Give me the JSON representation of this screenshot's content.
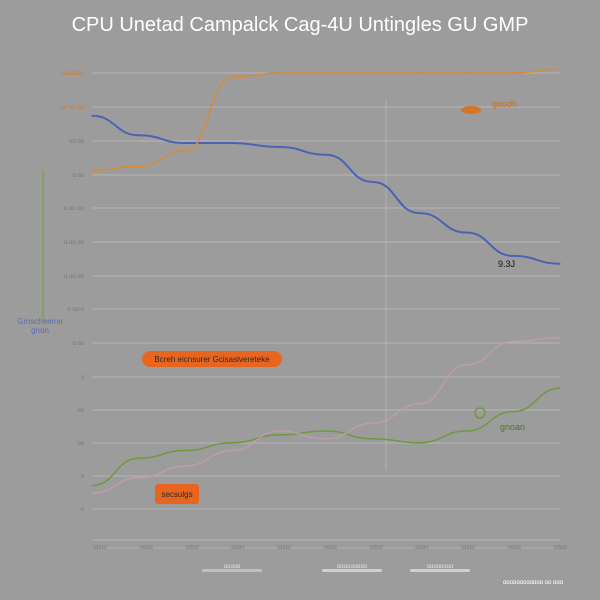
{
  "chart_data": {
    "type": "line",
    "title": "CPU Unetad  Campalck  Cag-4U  Untingles GU GMP",
    "y_tick_labels": [
      "ɑɑɑɑɑɑɑ",
      "ɑɑ ɑɑ ɑɑ",
      "ɑɑ ɑɑ",
      "ɑ ɑɑ",
      "ɑ ɑɑ ɑɑ",
      "ɑ ɑɑ ɑɑ",
      "ɑ ɑɑ ɑɑ",
      "ɑ ɑɑ ɑ",
      "ɑ ɑɑ",
      "ɑ",
      "ɑɑ",
      "ɑɑ",
      "ɑ",
      "ɑ"
    ],
    "x_tick_labels": [
      "ɑɑɑɑ",
      "ɑɑɑɑ",
      "ɑɑɑɑ",
      "ɑɑɑɑ",
      "ɑɑɑɑ",
      "ɑɑɑɑ",
      "ɑɑɑɑ",
      "ɑɑɑɑ",
      "ɑɑɑɑ",
      "ɑɑɑɑ",
      "ɑɑɑɑ"
    ],
    "left_axis_label": [
      "Gmscheeme",
      "gnon"
    ],
    "x": [
      0,
      1,
      2,
      3,
      4,
      5,
      6,
      7,
      8,
      9,
      10
    ],
    "ylim": [
      0,
      12
    ],
    "grid": true,
    "series": [
      {
        "name": "9.3J",
        "color": "#4a63b4",
        "values": [
          10.9,
          10.4,
          10.2,
          10.2,
          10.1,
          9.9,
          9.2,
          8.4,
          7.9,
          7.3,
          7.1
        ]
      },
      {
        "name": "gnoan",
        "color": "#6e9a3c",
        "values": [
          1.4,
          2.1,
          2.3,
          2.5,
          2.7,
          2.8,
          2.6,
          2.5,
          2.8,
          3.3,
          3.9
        ]
      },
      {
        "name": "goodh",
        "color": "#d88a36",
        "values": [
          9.5,
          9.6,
          10.0,
          11.9,
          12.0,
          12.0,
          12.0,
          12.0,
          12.0,
          12.0,
          12.1
        ]
      },
      {
        "name": "",
        "color": "#c99ab4",
        "values": [
          1.2,
          1.6,
          1.9,
          2.3,
          2.8,
          2.6,
          3.0,
          3.5,
          4.5,
          5.1,
          5.2
        ]
      }
    ],
    "annotations": [
      {
        "text": "Bcreh eicnsurer Gcisaslvereteke",
        "color": "#e86520"
      },
      {
        "text": "secsulgs",
        "color": "#e86520"
      },
      {
        "text": "ɑɑɑɑɑɑɑɑɑɑɑɑ ɑɑ ɑɑɑ",
        "color": "#ffffff"
      }
    ],
    "legend": {
      "placement": "bottom",
      "entries": [
        {
          "name": "ɑɑɑɑɑ",
          "color": "#bfbfbf"
        },
        {
          "name": "ɑɑɑɑɑɑɑɑɑ",
          "color": "#cfcfcf"
        },
        {
          "name": "ɑɑɑɑɑɑɑɑ",
          "color": "#cfcfcf"
        }
      ]
    }
  }
}
